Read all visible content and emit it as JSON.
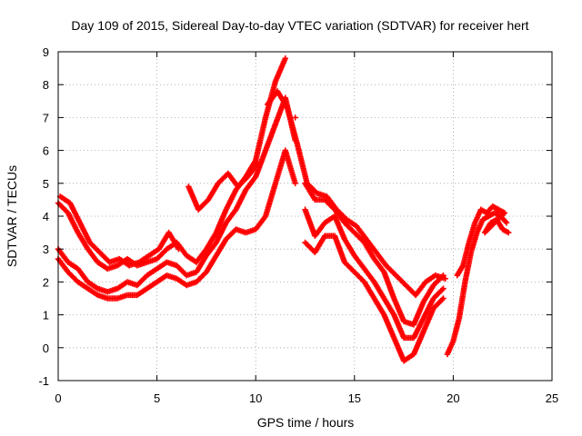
{
  "chart_data": {
    "type": "scatter",
    "title": "Day 109 of 2015, Sidereal Day-to-day VTEC variation (SDTVAR) for receiver hert",
    "xlabel": "GPS time / hours",
    "ylabel": "SDTVAR / TECUs",
    "xlim": [
      0,
      25
    ],
    "ylim": [
      -1,
      9
    ],
    "x_ticks": [
      "0",
      "5",
      "10",
      "15",
      "20",
      "25"
    ],
    "y_ticks": [
      "-1",
      "0",
      "1",
      "2",
      "3",
      "4",
      "5",
      "6",
      "7",
      "8",
      "9"
    ],
    "grid": true,
    "marker": "+",
    "color": "#ff0000",
    "series": [
      {
        "points": [
          [
            0,
            2.7
          ],
          [
            0.5,
            2.3
          ],
          [
            1,
            2.0
          ],
          [
            1.5,
            1.8
          ],
          [
            2,
            1.6
          ],
          [
            2.5,
            1.5
          ],
          [
            3,
            1.5
          ],
          [
            3.5,
            1.6
          ],
          [
            4,
            1.6
          ],
          [
            4.5,
            1.8
          ],
          [
            5,
            2.0
          ],
          [
            5.5,
            2.2
          ],
          [
            6,
            2.1
          ],
          [
            6.5,
            1.9
          ],
          [
            7,
            2.0
          ],
          [
            7.5,
            2.3
          ],
          [
            8,
            2.8
          ],
          [
            8.5,
            3.3
          ],
          [
            9,
            3.6
          ],
          [
            9.5,
            3.5
          ],
          [
            10,
            3.6
          ],
          [
            10.5,
            4.0
          ],
          [
            11,
            5.0
          ],
          [
            11.5,
            6.0
          ],
          [
            12,
            5.0
          ],
          [
            12.5,
            3.2
          ],
          [
            13,
            2.9
          ],
          [
            13.5,
            3.4
          ],
          [
            14,
            3.4
          ],
          [
            14.5,
            2.6
          ],
          [
            15,
            2.3
          ],
          [
            15.5,
            2.0
          ],
          [
            16,
            1.5
          ],
          [
            16.5,
            1.0
          ],
          [
            17,
            0.3
          ],
          [
            17.5,
            -0.4
          ],
          [
            18,
            -0.2
          ],
          [
            18.5,
            0.5
          ],
          [
            19,
            1.2
          ],
          [
            19.5,
            1.5
          ]
        ]
      },
      {
        "points": [
          [
            0,
            3.0
          ],
          [
            0.5,
            2.6
          ],
          [
            1,
            2.4
          ],
          [
            1.5,
            2.0
          ],
          [
            2,
            1.8
          ],
          [
            2.5,
            1.7
          ],
          [
            3,
            1.8
          ],
          [
            3.5,
            2.0
          ],
          [
            4,
            1.9
          ],
          [
            4.5,
            2.2
          ],
          [
            5,
            2.4
          ],
          [
            5.5,
            2.6
          ],
          [
            6,
            2.5
          ],
          [
            6.5,
            2.2
          ],
          [
            7,
            2.3
          ],
          [
            7.5,
            2.8
          ],
          [
            8,
            3.2
          ],
          [
            8.5,
            3.8
          ],
          [
            9,
            4.2
          ],
          [
            9.5,
            4.8
          ],
          [
            10,
            5.2
          ],
          [
            10.5,
            6.0
          ],
          [
            11,
            6.8
          ],
          [
            11.5,
            7.6
          ],
          [
            12,
            6.3
          ],
          [
            12.5,
            4.2
          ],
          [
            13,
            3.4
          ],
          [
            13.5,
            3.8
          ],
          [
            14,
            4.0
          ],
          [
            14.5,
            3.3
          ],
          [
            15,
            2.8
          ],
          [
            15.5,
            2.4
          ],
          [
            16,
            2.0
          ],
          [
            16.5,
            1.5
          ],
          [
            17,
            1.0
          ],
          [
            17.5,
            0.3
          ],
          [
            18,
            0.3
          ],
          [
            18.5,
            0.9
          ],
          [
            19,
            1.5
          ],
          [
            19.5,
            1.8
          ]
        ]
      },
      {
        "points": [
          [
            0,
            4.4
          ],
          [
            0.5,
            4.1
          ],
          [
            1,
            3.5
          ],
          [
            1.5,
            3.0
          ],
          [
            2,
            2.6
          ],
          [
            2.5,
            2.4
          ],
          [
            3,
            2.5
          ],
          [
            3.5,
            2.7
          ],
          [
            4,
            2.5
          ],
          [
            4.5,
            2.6
          ],
          [
            5,
            2.7
          ],
          [
            5.5,
            3.0
          ],
          [
            6,
            3.2
          ],
          [
            6.5,
            2.8
          ],
          [
            7,
            2.6
          ],
          [
            7.5,
            3.0
          ],
          [
            8,
            3.5
          ],
          [
            8.5,
            4.2
          ],
          [
            9,
            4.8
          ],
          [
            9.5,
            5.2
          ],
          [
            10,
            5.7
          ],
          [
            10.5,
            7.0
          ],
          [
            11,
            8.1
          ],
          [
            11.5,
            8.8
          ],
          [
            12,
            7.0
          ],
          [
            12.5,
            5.0
          ],
          [
            13,
            4.5
          ],
          [
            13.5,
            4.5
          ],
          [
            14,
            4.2
          ],
          [
            14.5,
            3.8
          ],
          [
            15,
            3.5
          ],
          [
            15.5,
            3.2
          ],
          [
            16,
            2.7
          ],
          [
            16.5,
            2.3
          ],
          [
            17,
            1.5
          ],
          [
            17.5,
            0.8
          ],
          [
            18,
            0.7
          ],
          [
            18.5,
            1.4
          ],
          [
            19,
            1.9
          ],
          [
            19.5,
            2.2
          ]
        ]
      },
      {
        "points": [
          [
            0.1,
            4.6
          ],
          [
            0.6,
            4.4
          ],
          [
            1.1,
            3.8
          ],
          [
            1.6,
            3.2
          ],
          [
            2.1,
            2.9
          ],
          [
            2.6,
            2.6
          ],
          [
            3.1,
            2.7
          ],
          [
            3.6,
            2.5
          ],
          [
            4.1,
            2.6
          ],
          [
            4.6,
            2.8
          ],
          [
            5.1,
            3.0
          ],
          [
            5.6,
            3.5
          ],
          [
            6.1,
            3.0
          ],
          [
            6.6,
            4.9
          ],
          [
            7.1,
            4.2
          ],
          [
            7.6,
            4.5
          ],
          [
            8.1,
            5.0
          ],
          [
            8.6,
            5.3
          ],
          [
            9.1,
            4.9
          ],
          [
            9.6,
            5.2
          ],
          [
            10.1,
            5.6
          ],
          [
            10.6,
            7.4
          ],
          [
            11.1,
            7.8
          ],
          [
            11.6,
            7.3
          ],
          [
            12.1,
            6.2
          ],
          [
            12.6,
            5.0
          ],
          [
            13.1,
            4.7
          ],
          [
            13.6,
            4.6
          ],
          [
            14.1,
            4.2
          ],
          [
            14.6,
            3.9
          ],
          [
            15.1,
            3.7
          ],
          [
            15.6,
            3.3
          ],
          [
            16.1,
            2.9
          ],
          [
            16.6,
            2.5
          ],
          [
            17.1,
            2.2
          ],
          [
            17.6,
            1.9
          ],
          [
            18.1,
            1.6
          ],
          [
            18.6,
            2.0
          ],
          [
            19.1,
            2.2
          ],
          [
            19.6,
            2.1
          ]
        ]
      },
      {
        "points": [
          [
            19.7,
            -0.2
          ],
          [
            20,
            0.2
          ],
          [
            20.3,
            0.9
          ],
          [
            20.6,
            2.0
          ],
          [
            20.9,
            2.9
          ],
          [
            21.2,
            3.5
          ],
          [
            21.5,
            3.9
          ],
          [
            21.8,
            4.0
          ],
          [
            22.1,
            4.1
          ],
          [
            22.4,
            4.0
          ],
          [
            22.7,
            3.8
          ],
          [
            20.2,
            2.2
          ],
          [
            20.5,
            2.5
          ],
          [
            20.8,
            3.2
          ],
          [
            21.1,
            3.8
          ],
          [
            21.4,
            4.2
          ],
          [
            21.7,
            4.1
          ],
          [
            22.0,
            4.3
          ],
          [
            22.3,
            4.2
          ],
          [
            22.6,
            4.1
          ],
          [
            21.6,
            3.5
          ],
          [
            21.9,
            3.8
          ],
          [
            22.2,
            3.9
          ],
          [
            22.5,
            3.6
          ],
          [
            22.8,
            3.5
          ]
        ]
      }
    ]
  }
}
